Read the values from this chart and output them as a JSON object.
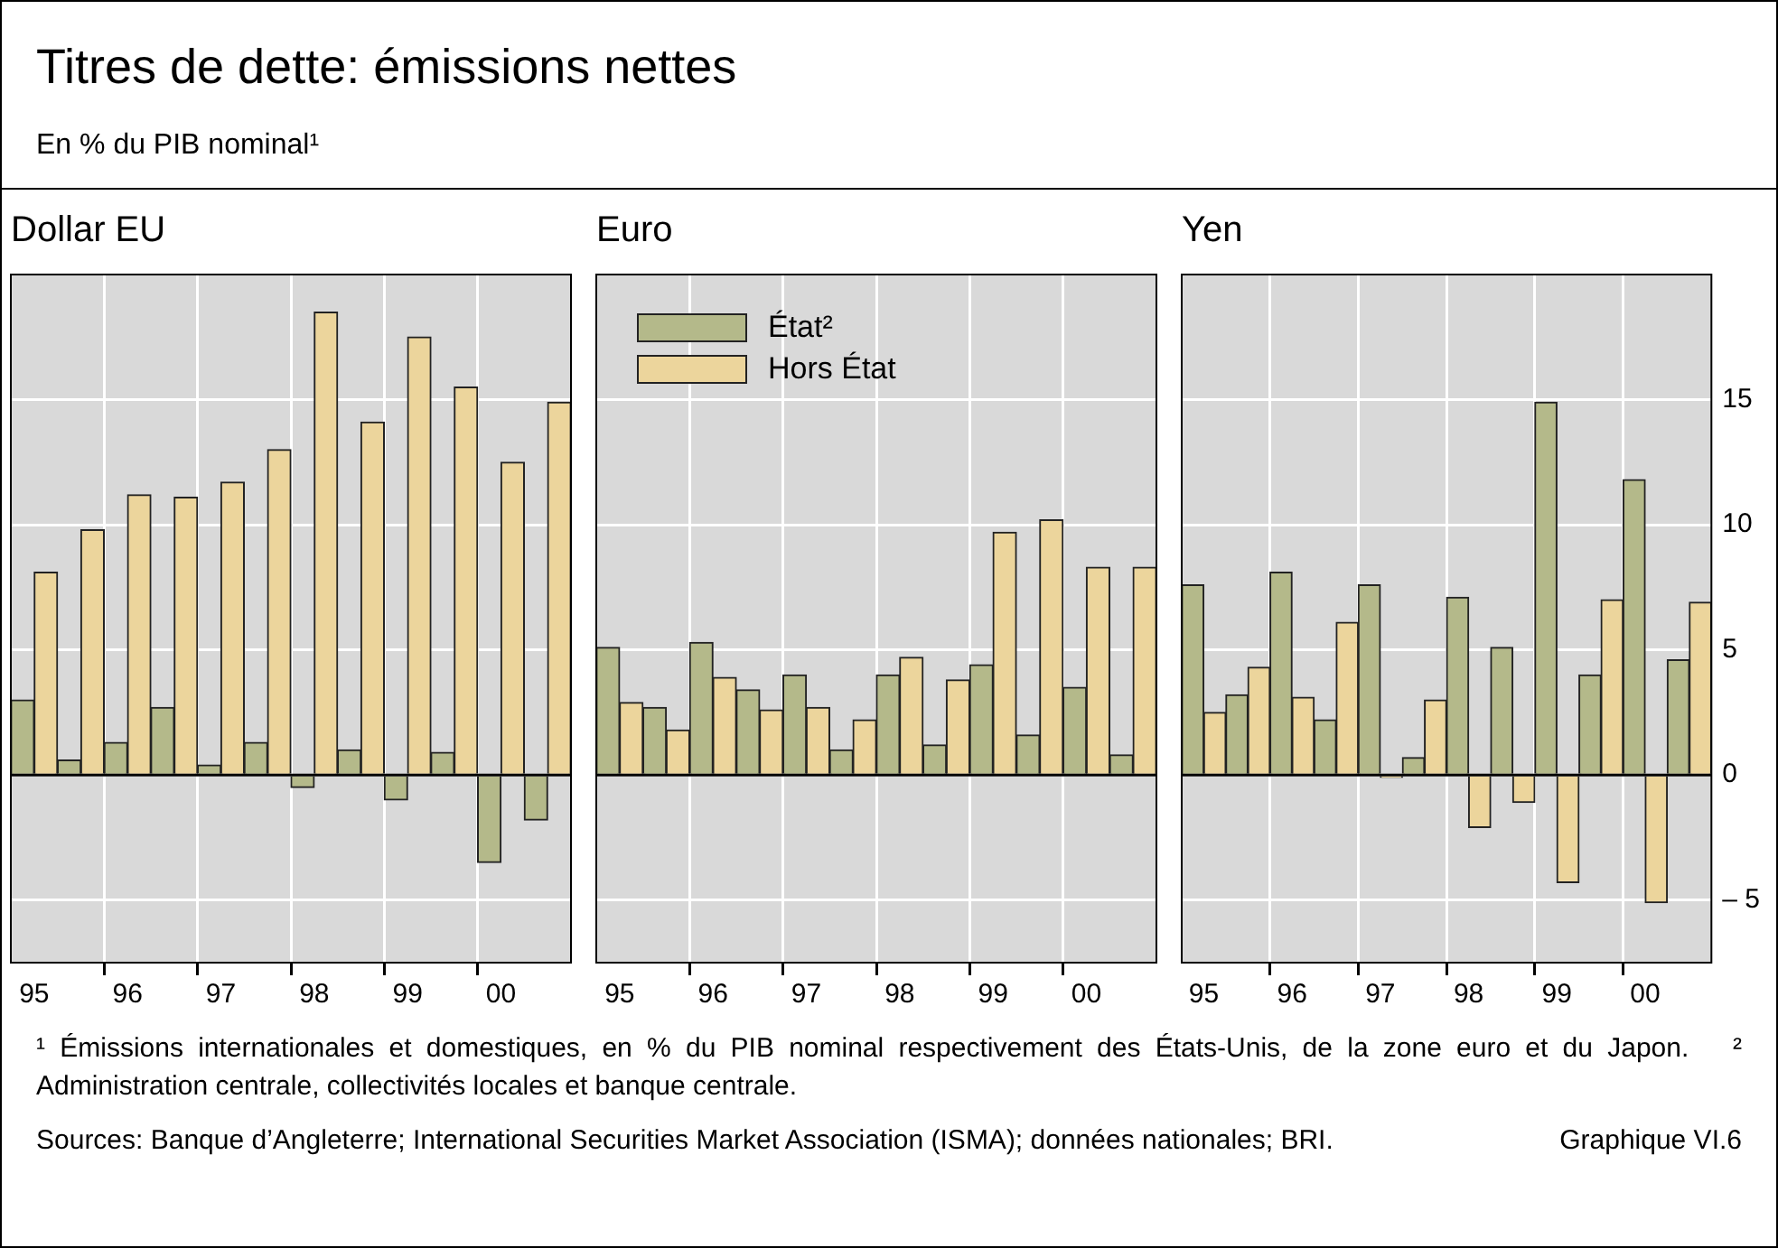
{
  "chart_data": [
    {
      "type": "bar",
      "title": "Dollar EU",
      "annotations": [
        "Titres de dette: émissions nettes",
        "En % du PIB nominal¹",
        "¹ Émissions internationales et domestiques, en % du PIB nominal respectivement des États-Unis, de la zone euro et du Japon.",
        "² Administration centrale, collectivités locales et banque centrale.",
        "Sources: Banque d’Angleterre; International Securities Market Association (ISMA); données nationales; BRI.",
        "Graphique VI.6"
      ],
      "categories": [
        "95",
        null,
        "96",
        null,
        "97",
        null,
        "98",
        null,
        "99",
        null,
        "00",
        null
      ],
      "series": [
        {
          "color": "#b4b98a",
          "values": [
            3.0,
            0.6,
            1.3,
            2.7,
            0.4,
            1.3,
            -0.5,
            1.0,
            -1.0,
            0.9,
            -3.5,
            -1.8
          ]
        },
        {
          "color": "#ecd59c",
          "values": [
            8.1,
            9.8,
            11.2,
            11.1,
            11.7,
            13.0,
            18.5,
            14.1,
            17.5,
            15.5,
            12.5,
            14.9
          ]
        }
      ],
      "ylim": [
        -7.5,
        20
      ],
      "yticks": [
        -5,
        0,
        5,
        10,
        15
      ],
      "tick_labels": "x",
      "grid": true
    },
    {
      "type": "bar",
      "title": "Euro",
      "categories": [
        "95",
        null,
        "96",
        null,
        "97",
        null,
        "98",
        null,
        "99",
        null,
        "00",
        null
      ],
      "series": [
        {
          "name": "État²",
          "color": "#b4b98a",
          "values": [
            5.1,
            2.7,
            5.3,
            3.4,
            4.0,
            1.0,
            4.0,
            1.2,
            4.4,
            1.6,
            3.5,
            0.8
          ]
        },
        {
          "name": "Hors État",
          "color": "#ecd59c",
          "values": [
            2.9,
            1.8,
            3.9,
            2.6,
            2.7,
            2.2,
            4.7,
            3.8,
            9.7,
            10.2,
            8.3,
            8.3
          ]
        }
      ],
      "ylim": [
        -7.5,
        20
      ],
      "yticks": [
        -5,
        0,
        5,
        10,
        15
      ],
      "tick_labels": "x",
      "grid": true,
      "legend": "top left"
    },
    {
      "type": "bar",
      "title": "Yen",
      "categories": [
        "95",
        null,
        "96",
        null,
        "97",
        null,
        "98",
        null,
        "99",
        null,
        "00",
        null
      ],
      "series": [
        {
          "color": "#b4b98a",
          "values": [
            7.6,
            3.2,
            8.1,
            2.2,
            7.6,
            0.7,
            7.1,
            5.1,
            14.9,
            4.0,
            11.8,
            4.6
          ]
        },
        {
          "color": "#ecd59c",
          "values": [
            2.5,
            4.3,
            3.1,
            6.1,
            -0.1,
            3.0,
            -2.1,
            -1.1,
            -4.3,
            7.0,
            -5.1,
            6.9
          ]
        }
      ],
      "ylim": [
        -7.5,
        20
      ],
      "yticks": [
        {
          "value": -5,
          "label": "– 5"
        },
        0,
        5,
        10,
        15
      ],
      "grid": true
    }
  ]
}
